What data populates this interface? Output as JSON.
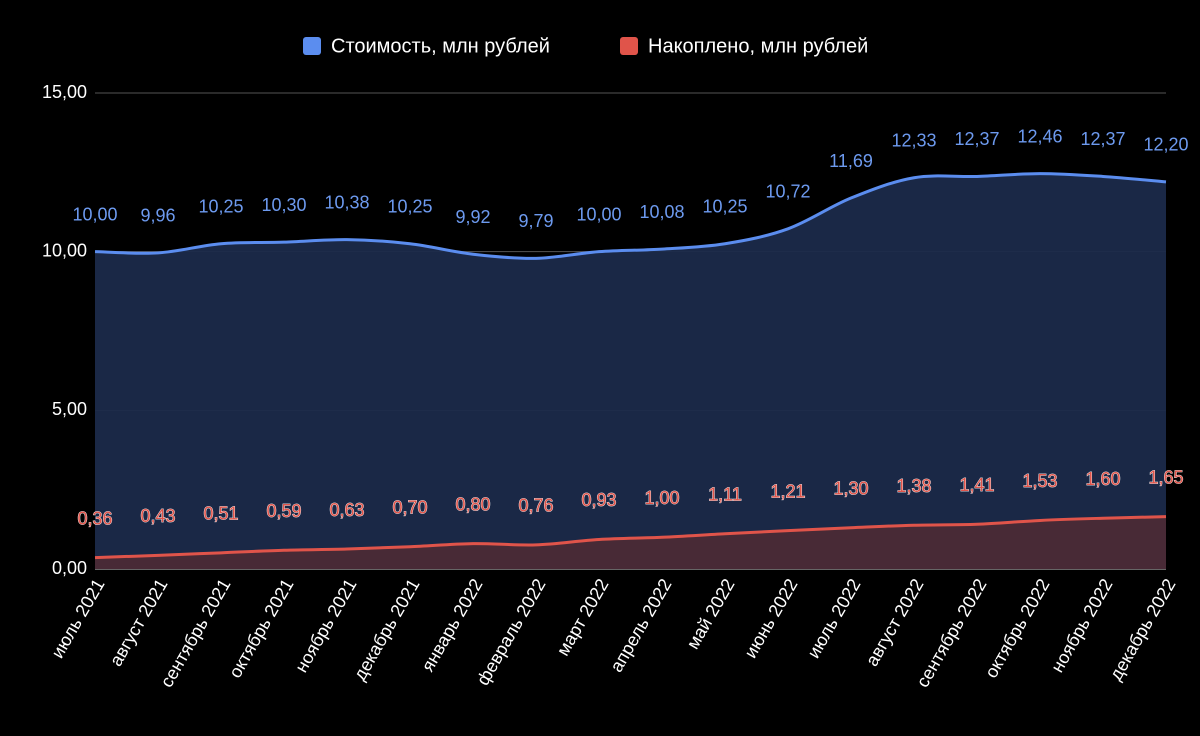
{
  "chart_data": {
    "type": "area",
    "categories": [
      "июль 2021",
      "август 2021",
      "сентябрь 2021",
      "октябрь 2021",
      "ноябрь 2021",
      "декабрь 2021",
      "январь 2022",
      "февраль 2022",
      "март 2022",
      "апрель 2022",
      "май 2022",
      "июнь 2022",
      "июль 2022",
      "август 2022",
      "сентябрь 2022",
      "октябрь 2022",
      "ноябрь 2022",
      "декабрь 2022"
    ],
    "series": [
      {
        "name": "Стоимость, млн рублей",
        "color": "#5b8def",
        "fill": "#1b2a4a",
        "values": [
          10.0,
          9.96,
          10.25,
          10.3,
          10.38,
          10.25,
          9.92,
          9.79,
          10.0,
          10.08,
          10.25,
          10.72,
          11.69,
          12.33,
          12.37,
          12.46,
          12.37,
          12.2
        ],
        "value_labels": [
          "10,00",
          "9,96",
          "10,25",
          "10,30",
          "10,38",
          "10,25",
          "9,92",
          "9,79",
          "10,00",
          "10,08",
          "10,25",
          "10,72",
          "11,69",
          "12,33",
          "12,37",
          "12,46",
          "12,37",
          "12,20"
        ]
      },
      {
        "name": "Накоплено, млн рублей",
        "color": "#e0544a",
        "fill": "#4b2a36",
        "values": [
          0.36,
          0.43,
          0.51,
          0.59,
          0.63,
          0.7,
          0.8,
          0.76,
          0.93,
          1.0,
          1.11,
          1.21,
          1.3,
          1.38,
          1.41,
          1.53,
          1.6,
          1.65
        ],
        "value_labels": [
          "0,36",
          "0,43",
          "0,51",
          "0,59",
          "0,63",
          "0,70",
          "0,80",
          "0,76",
          "0,93",
          "1,00",
          "1,11",
          "1,21",
          "1,30",
          "1,38",
          "1,41",
          "1,53",
          "1,60",
          "1,65"
        ]
      }
    ],
    "ylim": [
      0,
      15
    ],
    "yticks": [
      {
        "value": 0,
        "label": "0,00"
      },
      {
        "value": 5,
        "label": "5,00"
      },
      {
        "value": 10,
        "label": "10,00"
      },
      {
        "value": 15,
        "label": "15,00"
      }
    ],
    "grid": true,
    "legend": "top"
  }
}
